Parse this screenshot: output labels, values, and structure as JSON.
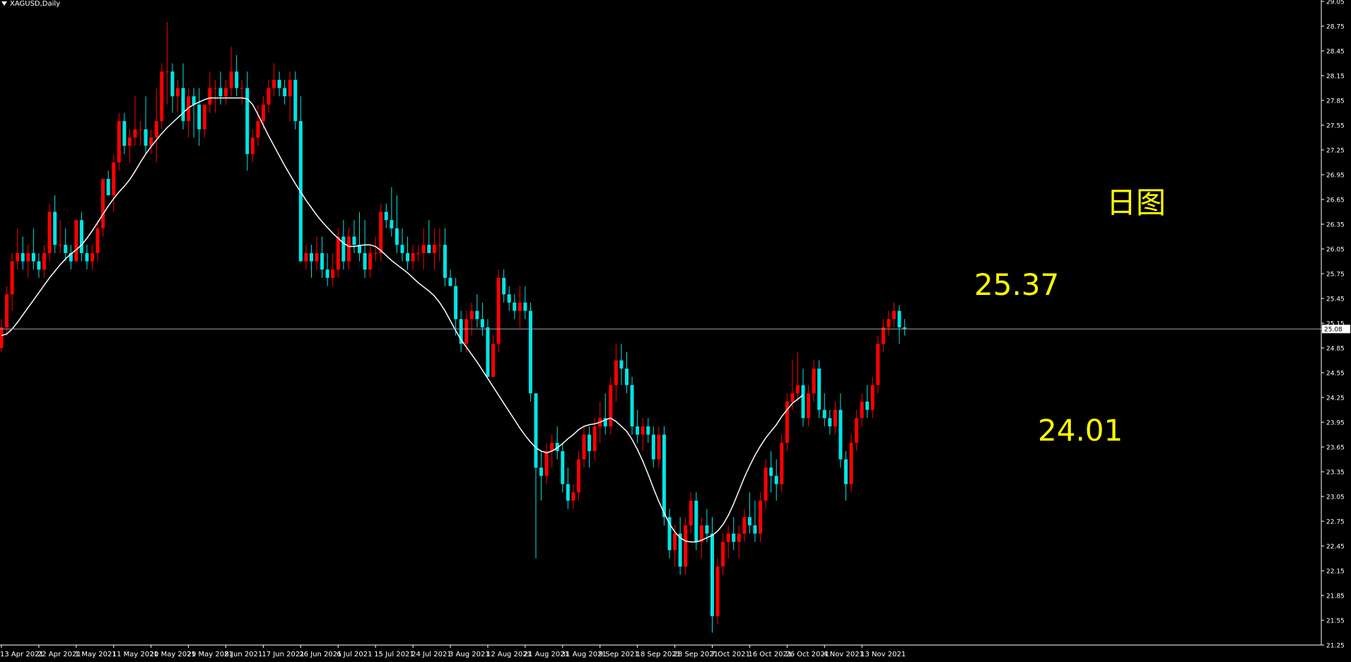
{
  "chart_data": {
    "type": "candlestick",
    "symbol": "XAGUSD,Daily",
    "ylim": [
      21.25,
      29.05
    ],
    "y_ticks": [
      "21.25",
      "21.55",
      "21.85",
      "22.15",
      "22.45",
      "22.75",
      "23.05",
      "23.35",
      "23.65",
      "23.95",
      "24.25",
      "24.55",
      "24.85",
      "25.15",
      "25.45",
      "25.75",
      "26.05",
      "26.35",
      "26.65",
      "26.95",
      "27.25",
      "27.55",
      "27.85",
      "28.15",
      "28.45",
      "28.75",
      "29.05"
    ],
    "current_price_label": "25.08",
    "current_price": 25.08,
    "x_labels": [
      {
        "index": 0,
        "label": "13 Apr 2021"
      },
      {
        "index": 7,
        "label": "22 Apr 2021"
      },
      {
        "index": 14,
        "label": "1 May 2021"
      },
      {
        "index": 21,
        "label": "11 May 2021"
      },
      {
        "index": 28,
        "label": "20 May 2021"
      },
      {
        "index": 35,
        "label": "29 May 2021"
      },
      {
        "index": 42,
        "label": "8 Jun 2021"
      },
      {
        "index": 49,
        "label": "17 Jun 2021"
      },
      {
        "index": 56,
        "label": "26 Jun 2021"
      },
      {
        "index": 63,
        "label": "6 Jul 2021"
      },
      {
        "index": 70,
        "label": "15 Jul 2021"
      },
      {
        "index": 77,
        "label": "24 Jul 2021"
      },
      {
        "index": 84,
        "label": "3 Aug 2021"
      },
      {
        "index": 91,
        "label": "12 Aug 2021"
      },
      {
        "index": 98,
        "label": "21 Aug 2021"
      },
      {
        "index": 105,
        "label": "31 Aug 2021"
      },
      {
        "index": 112,
        "label": "9 Sep 2021"
      },
      {
        "index": 119,
        "label": "18 Sep 2021"
      },
      {
        "index": 126,
        "label": "28 Sep 2021"
      },
      {
        "index": 133,
        "label": "7 Oct 2021"
      },
      {
        "index": 140,
        "label": "16 Oct 2021"
      },
      {
        "index": 147,
        "label": "26 Oct 2021"
      },
      {
        "index": 154,
        "label": "4 Nov 2021"
      },
      {
        "index": 161,
        "label": "13 Nov 2021"
      }
    ],
    "bars": [
      [
        24.85,
        25.2,
        24.8,
        25.1
      ],
      [
        25.1,
        25.6,
        25.0,
        25.5
      ],
      [
        25.5,
        26.0,
        25.3,
        25.9
      ],
      [
        25.9,
        26.3,
        25.8,
        26.0
      ],
      [
        26.0,
        26.2,
        25.8,
        25.9
      ],
      [
        25.9,
        26.1,
        25.7,
        26.0
      ],
      [
        26.0,
        26.3,
        25.8,
        25.9
      ],
      [
        25.9,
        26.0,
        25.7,
        25.8
      ],
      [
        25.8,
        26.1,
        25.7,
        26.0
      ],
      [
        26.0,
        26.6,
        25.9,
        26.5
      ],
      [
        26.5,
        26.7,
        26.0,
        26.1
      ],
      [
        26.1,
        26.4,
        26.0,
        26.1
      ],
      [
        26.1,
        26.3,
        25.9,
        26.0
      ],
      [
        26.0,
        26.1,
        25.8,
        25.9
      ],
      [
        25.9,
        26.4,
        25.9,
        26.4
      ],
      [
        26.4,
        26.5,
        25.9,
        26.0
      ],
      [
        26.0,
        26.1,
        25.8,
        25.9
      ],
      [
        25.9,
        26.1,
        25.8,
        26.0
      ],
      [
        26.0,
        26.4,
        25.9,
        26.3
      ],
      [
        26.3,
        26.9,
        26.2,
        26.9
      ],
      [
        26.9,
        27.0,
        26.7,
        26.7
      ],
      [
        26.7,
        27.2,
        26.5,
        27.1
      ],
      [
        27.1,
        27.7,
        27.0,
        27.6
      ],
      [
        27.6,
        27.7,
        27.2,
        27.3
      ],
      [
        27.3,
        27.5,
        27.1,
        27.4
      ],
      [
        27.4,
        27.9,
        27.3,
        27.5
      ],
      [
        27.5,
        27.6,
        27.3,
        27.5
      ],
      [
        27.5,
        27.9,
        27.2,
        27.3
      ],
      [
        27.3,
        27.5,
        27.2,
        27.4
      ],
      [
        27.4,
        28.0,
        27.1,
        27.6
      ],
      [
        27.6,
        28.3,
        27.5,
        28.2
      ],
      [
        28.2,
        28.8,
        27.8,
        28.2
      ],
      [
        28.2,
        28.3,
        27.7,
        27.9
      ],
      [
        27.9,
        28.1,
        27.7,
        28.0
      ],
      [
        28.0,
        28.3,
        27.5,
        27.6
      ],
      [
        27.6,
        28.0,
        27.4,
        27.9
      ],
      [
        27.9,
        28.0,
        27.4,
        27.8
      ],
      [
        27.8,
        28.0,
        27.3,
        27.5
      ],
      [
        27.5,
        27.8,
        27.4,
        27.8
      ],
      [
        27.8,
        28.2,
        27.7,
        28.0
      ],
      [
        28.0,
        28.1,
        27.7,
        28.0
      ],
      [
        28.0,
        28.2,
        27.8,
        27.9
      ],
      [
        27.9,
        28.1,
        27.8,
        28.0
      ],
      [
        28.0,
        28.5,
        27.9,
        28.2
      ],
      [
        28.2,
        28.4,
        27.9,
        28.0
      ],
      [
        28.0,
        28.1,
        27.8,
        28.0
      ],
      [
        28.0,
        28.2,
        27.0,
        27.2
      ],
      [
        27.2,
        27.5,
        27.1,
        27.4
      ],
      [
        27.4,
        27.8,
        27.3,
        27.6
      ],
      [
        27.6,
        27.9,
        27.5,
        27.8
      ],
      [
        27.8,
        28.1,
        27.7,
        28.0
      ],
      [
        28.0,
        28.3,
        27.9,
        28.1
      ],
      [
        28.1,
        28.2,
        27.9,
        28.0
      ],
      [
        28.0,
        28.1,
        27.8,
        27.9
      ],
      [
        27.9,
        28.2,
        27.6,
        28.1
      ],
      [
        28.1,
        28.2,
        27.5,
        27.6
      ],
      [
        27.6,
        27.9,
        25.9,
        25.9
      ],
      [
        25.9,
        26.1,
        25.8,
        26.0
      ],
      [
        26.0,
        26.1,
        25.7,
        25.9
      ],
      [
        25.9,
        26.2,
        25.8,
        26.0
      ],
      [
        26.0,
        26.2,
        25.7,
        25.8
      ],
      [
        25.8,
        26.0,
        25.6,
        25.7
      ],
      [
        25.7,
        26.0,
        25.6,
        25.8
      ],
      [
        25.8,
        26.3,
        25.7,
        26.2
      ],
      [
        26.2,
        26.4,
        25.8,
        25.9
      ],
      [
        25.9,
        26.3,
        25.8,
        26.2
      ],
      [
        26.2,
        26.4,
        26.0,
        26.1
      ],
      [
        26.1,
        26.5,
        25.9,
        26.0
      ],
      [
        26.0,
        26.4,
        25.7,
        25.8
      ],
      [
        25.8,
        26.1,
        25.7,
        26.0
      ],
      [
        26.0,
        26.2,
        25.9,
        26.0
      ],
      [
        26.0,
        26.6,
        25.9,
        26.5
      ],
      [
        26.5,
        26.6,
        26.3,
        26.4
      ],
      [
        26.4,
        26.8,
        26.2,
        26.3
      ],
      [
        26.3,
        26.7,
        26.0,
        26.1
      ],
      [
        26.1,
        26.3,
        25.9,
        26.0
      ],
      [
        26.0,
        26.2,
        25.8,
        25.9
      ],
      [
        25.9,
        26.1,
        25.8,
        26.0
      ],
      [
        26.0,
        26.1,
        25.9,
        26.0
      ],
      [
        26.0,
        26.3,
        25.8,
        26.1
      ],
      [
        26.1,
        26.4,
        26.0,
        26.0
      ],
      [
        26.0,
        26.3,
        25.8,
        26.1
      ],
      [
        26.1,
        26.3,
        25.9,
        26.1
      ],
      [
        26.1,
        26.3,
        25.6,
        25.7
      ],
      [
        25.7,
        25.8,
        25.6,
        25.6
      ],
      [
        25.6,
        25.7,
        25.0,
        25.2
      ],
      [
        25.2,
        25.3,
        24.8,
        24.9
      ],
      [
        24.9,
        25.3,
        24.8,
        25.2
      ],
      [
        25.2,
        25.4,
        25.0,
        25.3
      ],
      [
        25.3,
        25.5,
        25.1,
        25.2
      ],
      [
        25.2,
        25.4,
        25.0,
        25.1
      ],
      [
        25.1,
        25.2,
        24.5,
        24.5
      ],
      [
        24.5,
        25.0,
        24.5,
        24.9
      ],
      [
        24.9,
        25.8,
        24.8,
        25.7
      ],
      [
        25.7,
        25.8,
        25.4,
        25.5
      ],
      [
        25.5,
        25.6,
        25.3,
        25.4
      ],
      [
        25.4,
        25.5,
        25.2,
        25.3
      ],
      [
        25.3,
        25.6,
        25.1,
        25.4
      ],
      [
        25.4,
        25.6,
        25.2,
        25.3
      ],
      [
        25.3,
        25.4,
        24.2,
        24.3
      ],
      [
        24.3,
        24.3,
        22.3,
        23.4
      ],
      [
        23.4,
        23.6,
        23.0,
        23.3
      ],
      [
        23.3,
        23.7,
        23.2,
        23.6
      ],
      [
        23.6,
        23.8,
        23.4,
        23.7
      ],
      [
        23.7,
        23.9,
        23.5,
        23.6
      ],
      [
        23.6,
        23.7,
        23.1,
        23.2
      ],
      [
        23.2,
        23.4,
        22.9,
        23.0
      ],
      [
        23.0,
        23.2,
        22.9,
        23.1
      ],
      [
        23.1,
        23.6,
        23.0,
        23.5
      ],
      [
        23.5,
        23.9,
        23.4,
        23.8
      ],
      [
        23.8,
        23.9,
        23.4,
        23.6
      ],
      [
        23.6,
        24.0,
        23.5,
        23.9
      ],
      [
        23.9,
        24.2,
        23.7,
        24.0
      ],
      [
        24.0,
        24.3,
        23.8,
        23.9
      ],
      [
        23.9,
        24.5,
        23.8,
        24.4
      ],
      [
        24.4,
        24.9,
        24.2,
        24.7
      ],
      [
        24.7,
        24.9,
        24.4,
        24.6
      ],
      [
        24.6,
        24.8,
        24.3,
        24.4
      ],
      [
        24.4,
        24.5,
        23.8,
        23.9
      ],
      [
        23.9,
        24.1,
        23.7,
        23.8
      ],
      [
        23.8,
        24.0,
        23.6,
        23.9
      ],
      [
        23.9,
        24.0,
        23.7,
        23.8
      ],
      [
        23.8,
        23.9,
        23.4,
        23.5
      ],
      [
        23.5,
        23.9,
        23.4,
        23.8
      ],
      [
        23.8,
        23.9,
        22.7,
        22.8
      ],
      [
        22.8,
        22.9,
        22.3,
        22.4
      ],
      [
        22.4,
        22.7,
        22.2,
        22.6
      ],
      [
        22.6,
        22.8,
        22.1,
        22.2
      ],
      [
        22.2,
        22.8,
        22.1,
        22.7
      ],
      [
        22.7,
        23.1,
        22.6,
        23.0
      ],
      [
        23.0,
        23.1,
        22.4,
        22.5
      ],
      [
        22.5,
        22.8,
        22.3,
        22.7
      ],
      [
        22.7,
        22.9,
        22.5,
        22.6
      ],
      [
        22.6,
        22.8,
        21.4,
        21.6
      ],
      [
        21.6,
        22.3,
        21.5,
        22.2
      ],
      [
        22.2,
        22.6,
        22.1,
        22.5
      ],
      [
        22.5,
        22.7,
        22.3,
        22.6
      ],
      [
        22.6,
        22.8,
        22.4,
        22.5
      ],
      [
        22.5,
        22.7,
        22.3,
        22.6
      ],
      [
        22.6,
        22.9,
        22.5,
        22.8
      ],
      [
        22.8,
        23.1,
        22.6,
        22.7
      ],
      [
        22.7,
        23.0,
        22.5,
        22.6
      ],
      [
        22.6,
        23.1,
        22.5,
        23.0
      ],
      [
        23.0,
        23.5,
        22.9,
        23.4
      ],
      [
        23.4,
        23.6,
        23.1,
        23.3
      ],
      [
        23.3,
        23.5,
        23.0,
        23.2
      ],
      [
        23.2,
        23.8,
        23.1,
        23.7
      ],
      [
        23.7,
        24.3,
        23.6,
        24.2
      ],
      [
        24.2,
        24.7,
        24.1,
        24.3
      ],
      [
        24.3,
        24.8,
        24.2,
        24.4
      ],
      [
        24.4,
        24.6,
        23.9,
        24.0
      ],
      [
        24.0,
        24.4,
        23.9,
        24.3
      ],
      [
        24.3,
        24.7,
        24.2,
        24.6
      ],
      [
        24.6,
        24.7,
        24.0,
        24.1
      ],
      [
        24.1,
        24.3,
        23.9,
        24.0
      ],
      [
        24.0,
        24.1,
        23.8,
        23.9
      ],
      [
        23.9,
        24.2,
        23.8,
        24.1
      ],
      [
        24.1,
        24.3,
        23.4,
        23.5
      ],
      [
        23.5,
        23.6,
        23.0,
        23.2
      ],
      [
        23.2,
        23.8,
        23.1,
        23.7
      ],
      [
        23.7,
        24.1,
        23.6,
        24.0
      ],
      [
        24.0,
        24.3,
        23.9,
        24.2
      ],
      [
        24.2,
        24.4,
        24.0,
        24.1
      ],
      [
        24.1,
        24.5,
        24.0,
        24.4
      ],
      [
        24.4,
        25.0,
        24.3,
        24.9
      ],
      [
        24.9,
        25.2,
        24.8,
        25.1
      ],
      [
        25.1,
        25.3,
        25.0,
        25.2
      ],
      [
        25.2,
        25.4,
        25.1,
        25.3
      ],
      [
        25.3,
        25.37,
        24.9,
        25.1
      ],
      [
        25.1,
        25.2,
        25.0,
        25.08
      ]
    ],
    "ma": [
      25.0,
      25.02,
      25.08,
      25.16,
      25.25,
      25.34,
      25.43,
      25.52,
      25.61,
      25.7,
      25.78,
      25.86,
      25.93,
      25.99,
      26.04,
      26.1,
      26.18,
      26.27,
      26.37,
      26.47,
      26.57,
      26.66,
      26.74,
      26.81,
      26.89,
      26.99,
      27.1,
      27.2,
      27.29,
      27.37,
      27.45,
      27.52,
      27.58,
      27.64,
      27.7,
      27.76,
      27.8,
      27.83,
      27.86,
      27.88,
      27.88,
      27.88,
      27.88,
      27.88,
      27.88,
      27.88,
      27.87,
      27.8,
      27.68,
      27.55,
      27.42,
      27.3,
      27.18,
      27.06,
      26.95,
      26.84,
      26.74,
      26.64,
      26.55,
      26.46,
      26.38,
      26.31,
      26.24,
      26.18,
      26.12,
      26.08,
      26.08,
      26.09,
      26.1,
      26.1,
      26.08,
      26.03,
      25.97,
      25.91,
      25.86,
      25.81,
      25.76,
      25.7,
      25.64,
      25.59,
      25.54,
      25.48,
      25.4,
      25.3,
      25.18,
      25.06,
      24.95,
      24.86,
      24.77,
      24.68,
      24.58,
      24.48,
      24.38,
      24.28,
      24.18,
      24.08,
      23.98,
      23.88,
      23.79,
      23.71,
      23.64,
      23.6,
      23.58,
      23.6,
      23.64,
      23.69,
      23.75,
      23.8,
      23.86,
      23.9,
      23.92,
      23.93,
      23.95,
      23.98,
      24.0,
      23.96,
      23.9,
      23.84,
      23.74,
      23.62,
      23.48,
      23.32,
      23.15,
      22.99,
      22.85,
      22.72,
      22.62,
      22.55,
      22.51,
      22.5,
      22.5,
      22.52,
      22.55,
      22.58,
      22.63,
      22.71,
      22.82,
      22.96,
      23.12,
      23.28,
      23.42,
      23.55,
      23.66,
      23.76,
      23.84,
      23.92,
      24.02,
      24.1,
      24.18,
      24.23,
      24.28
    ]
  },
  "annotations": [
    {
      "text": "日图",
      "color": "#ffff00"
    },
    {
      "text": "25.37",
      "color": "#ffff00"
    },
    {
      "text": "24.01",
      "color": "#ffff00"
    }
  ],
  "colors": {
    "background": "#000000",
    "bull": "#ff0000",
    "bear": "#00e5e5",
    "ma_line": "#ffffff",
    "price_line": "#a0a8b0",
    "axis": "#ffffff",
    "text": "#ffffff"
  }
}
